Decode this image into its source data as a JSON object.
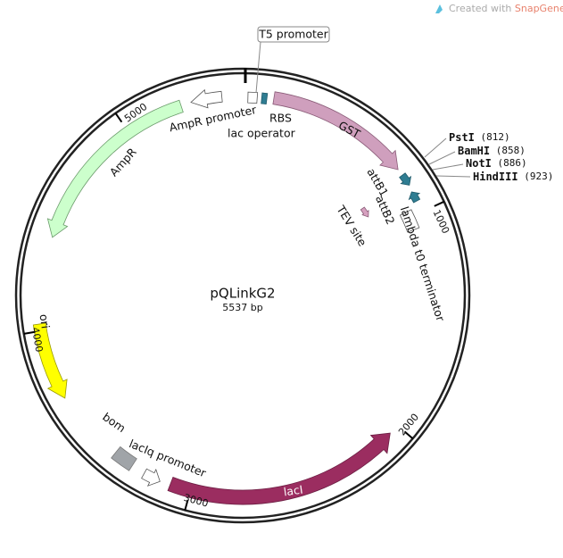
{
  "header": {
    "prefix": "Created with",
    "brand": "SnapGene®"
  },
  "plasmid": {
    "name": "pQLinkG2",
    "length": "5537 bp"
  },
  "ticks": [
    1000,
    2000,
    3000,
    4000,
    5000
  ],
  "features": [
    {
      "label": "T5 promoter"
    },
    {
      "label": "RBS"
    },
    {
      "label": "lac operator"
    },
    {
      "label": "GST"
    },
    {
      "label": "attB1"
    },
    {
      "label": "attB2"
    },
    {
      "label": "TEV site"
    },
    {
      "label": "lambda t0 terminator"
    },
    {
      "label": "lacI"
    },
    {
      "label": "lacIq promoter"
    },
    {
      "label": "bom"
    },
    {
      "label": "ori"
    },
    {
      "label": "AmpR"
    },
    {
      "label": "AmpR promoter"
    }
  ],
  "sites": [
    {
      "name": "PstI",
      "position": "(812)"
    },
    {
      "name": "BamHI",
      "position": "(858)"
    },
    {
      "name": "NotI",
      "position": "(886)"
    },
    {
      "name": "HindIII",
      "position": "(923)"
    }
  ]
}
